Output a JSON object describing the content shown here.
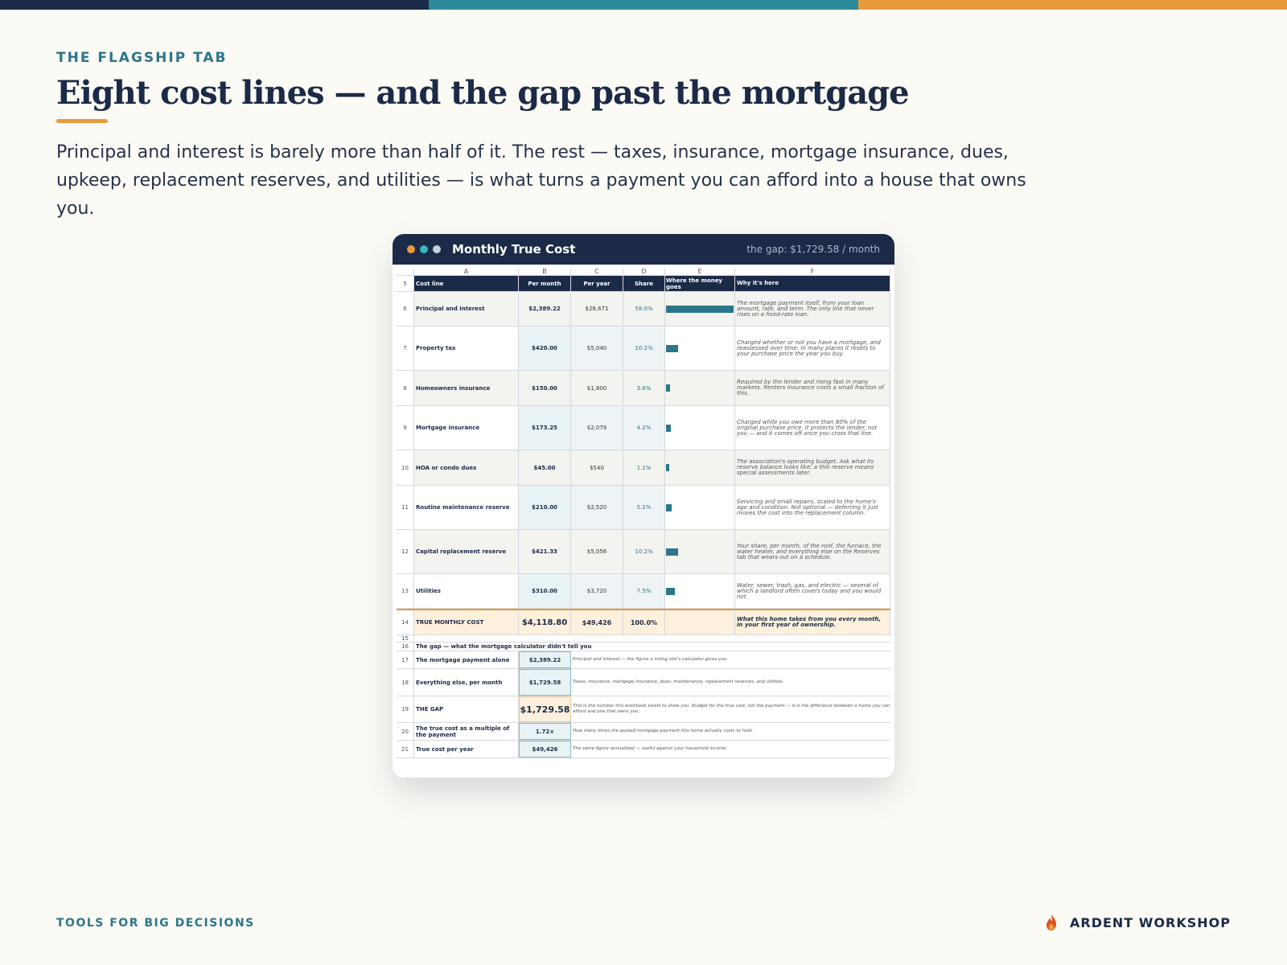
{
  "colors": {
    "navy": "#1b2a47",
    "teal": "#2c7689",
    "orange": "#e79a3c",
    "bg": "#fbfaf5"
  },
  "eyebrow": "THE FLAGSHIP TAB",
  "title": "Eight cost lines — and the gap past the mortgage",
  "lede": "Principal and interest is barely more than half of it. The rest — taxes, insurance, mortgage insurance, dues, upkeep, replacement reserves, and utilities — is what turns a payment you can afford into a house that owns you.",
  "window": {
    "title": "Monthly True Cost",
    "gap_label": "the gap: $1,729.58 / month"
  },
  "sheet": {
    "columns": [
      "A",
      "B",
      "C",
      "D",
      "E",
      "F"
    ],
    "header": {
      "row": "5",
      "a": "Cost line",
      "b": "Per month",
      "c": "Per year",
      "d": "Share",
      "e": "Where the money goes",
      "f": "Why it's here"
    },
    "lines": [
      {
        "row": "6",
        "name": "Principal and interest",
        "month": "$2,389.22",
        "year": "$28,671",
        "share": "58.0%",
        "share_value": 58.0,
        "note": "The mortgage payment itself, from your loan amount, rate, and term. The only line that never rises on a fixed-rate loan."
      },
      {
        "row": "7",
        "name": "Property tax",
        "month": "$420.00",
        "year": "$5,040",
        "share": "10.2%",
        "share_value": 10.2,
        "note": "Charged whether or not you have a mortgage, and reassessed over time. In many places it resets to your purchase price the year you buy."
      },
      {
        "row": "8",
        "name": "Homeowners insurance",
        "month": "$150.00",
        "year": "$1,800",
        "share": "3.6%",
        "share_value": 3.6,
        "note": "Required by the lender and rising fast in many markets. Renters insurance costs a small fraction of this."
      },
      {
        "row": "9",
        "name": "Mortgage insurance",
        "month": "$173.25",
        "year": "$2,079",
        "share": "4.2%",
        "share_value": 4.2,
        "note": "Charged while you owe more than 80% of the original purchase price. It protects the lender, not you — and it comes off once you cross that line."
      },
      {
        "row": "10",
        "name": "HOA or condo dues",
        "month": "$45.00",
        "year": "$540",
        "share": "1.1%",
        "share_value": 1.1,
        "note": "The association's operating budget. Ask what its reserve balance looks like; a thin reserve means special assessments later."
      },
      {
        "row": "11",
        "name": "Routine maintenance reserve",
        "month": "$210.00",
        "year": "$2,520",
        "share": "5.1%",
        "share_value": 5.1,
        "note": "Servicing and small repairs, scaled to the home's age and condition. Not optional — deferring it just moves the cost into the replacement column."
      },
      {
        "row": "12",
        "name": "Capital replacement reserve",
        "month": "$421.33",
        "year": "$5,056",
        "share": "10.2%",
        "share_value": 10.2,
        "note": "Your share, per month, of the roof, the furnace, the water heater, and everything else on the Reserves tab that wears out on a schedule."
      },
      {
        "row": "13",
        "name": "Utilities",
        "month": "$310.00",
        "year": "$3,720",
        "share": "7.5%",
        "share_value": 7.5,
        "note": "Water, sewer, trash, gas, and electric — several of which a landlord often covers today and you would not."
      }
    ],
    "total": {
      "row": "14",
      "name": "TRUE MONTHLY COST",
      "month": "$4,118.80",
      "year": "$49,426",
      "share": "100.0%",
      "note": "What this home takes from you every month, in your first year of ownership."
    },
    "blank_row": "15",
    "gap_heading": {
      "row": "16",
      "text": "The gap — what the mortgage calculator didn't tell you"
    },
    "gap_rows": [
      {
        "row": "17",
        "label": "The mortgage payment alone",
        "value": "$2,389.22",
        "note": "Principal and interest — the figure a listing site's calculator gives you."
      },
      {
        "row": "18",
        "label": "Everything else, per month",
        "value": "$1,729.58",
        "note": "Taxes, insurance, mortgage insurance, dues, maintenance, replacement reserves, and utilities."
      },
      {
        "row": "19",
        "label": "THE GAP",
        "value": "$1,729.58",
        "note": "This is the number this workbook exists to show you. Budget for the true cost, not the payment — it is the difference between a home you can afford and one that owns you."
      },
      {
        "row": "20",
        "label": "The true cost as a multiple of the payment",
        "value": "1.72×",
        "note": "How many times the quoted mortgage payment this home actually costs to hold."
      },
      {
        "row": "21",
        "label": "True cost per year",
        "value": "$49,426",
        "note": "The same figure annualized — useful against your household income."
      }
    ]
  },
  "footer": {
    "left": "TOOLS FOR BIG DECISIONS",
    "brand": "ARDENT WORKSHOP",
    "brand_icon": "flame-icon"
  }
}
